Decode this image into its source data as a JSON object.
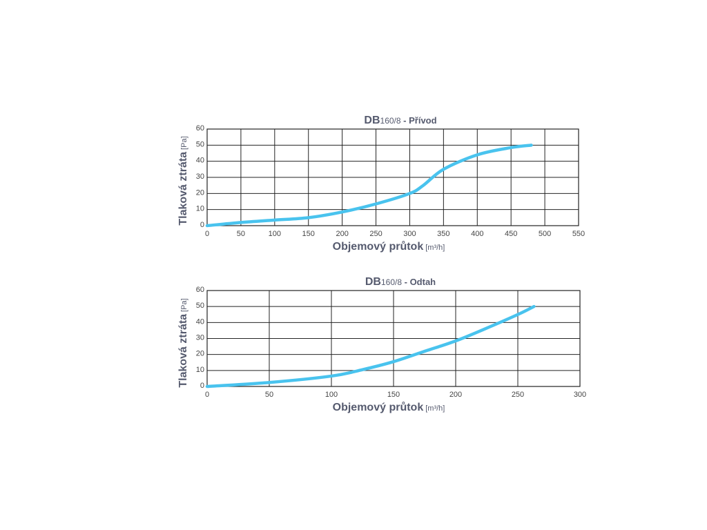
{
  "chart_data": [
    {
      "type": "line",
      "title": "DB160/8 - Přívod",
      "title_parts": {
        "main": "DB",
        "model": "160/8",
        "rest": " - Přívod"
      },
      "xlabel": "Objemový průtok",
      "xunit": "[m³/h]",
      "ylabel": "Tlaková ztráta",
      "yunit": "[Pa]",
      "xlim": [
        0,
        550
      ],
      "ylim": [
        0,
        60
      ],
      "xticks": [
        0,
        50,
        100,
        150,
        200,
        250,
        300,
        350,
        400,
        450,
        500,
        550
      ],
      "yticks": [
        0,
        10,
        20,
        30,
        40,
        50,
        60
      ],
      "grid": true,
      "color": "#49c3ee",
      "series": [
        {
          "x": [
            0,
            50,
            100,
            150,
            200,
            250,
            300,
            320,
            350,
            400,
            450,
            480
          ],
          "y": [
            0,
            2,
            3.5,
            5,
            8.5,
            13.5,
            20,
            25,
            35,
            44,
            48.5,
            50
          ]
        }
      ]
    },
    {
      "type": "line",
      "title": "DB160/8 - Odtah",
      "title_parts": {
        "main": "DB",
        "model": "160/8",
        "rest": " - Odtah"
      },
      "xlabel": "Objemový průtok",
      "xunit": "[m³/h]",
      "ylabel": "Tlaková ztráta",
      "yunit": "[Pa]",
      "xlim": [
        0,
        300
      ],
      "ylim": [
        0,
        60
      ],
      "xticks": [
        0,
        50,
        100,
        150,
        200,
        250,
        300
      ],
      "yticks": [
        0,
        10,
        20,
        30,
        40,
        50,
        60
      ],
      "grid": true,
      "color": "#49c3ee",
      "series": [
        {
          "x": [
            0,
            50,
            100,
            125,
            150,
            175,
            200,
            225,
            250,
            263
          ],
          "y": [
            0,
            2.5,
            6.5,
            10.5,
            15.5,
            22,
            28.5,
            36.5,
            45,
            50
          ]
        }
      ]
    }
  ]
}
